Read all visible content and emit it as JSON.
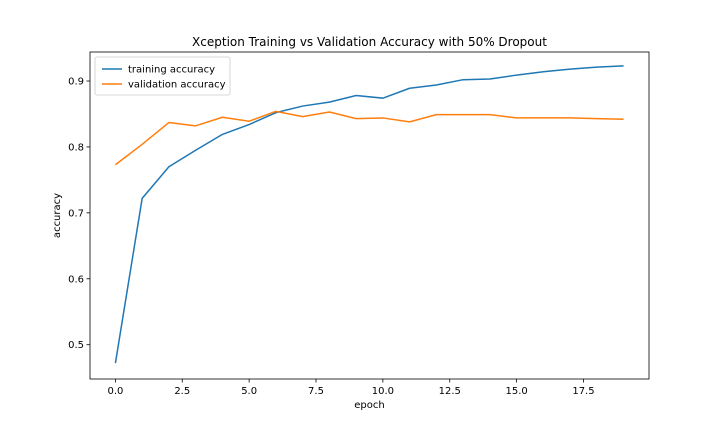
{
  "chart_data": {
    "type": "line",
    "title": "Xception Training vs Validation Accuracy with 50% Dropout",
    "xlabel": "epoch",
    "ylabel": "accuracy",
    "xlim": [
      -0.95,
      19.95
    ],
    "ylim": [
      0.448,
      0.944
    ],
    "xticks": [
      0.0,
      2.5,
      5.0,
      7.5,
      10.0,
      12.5,
      15.0,
      17.5
    ],
    "xtick_labels": [
      "0.0",
      "2.5",
      "5.0",
      "7.5",
      "10.0",
      "12.5",
      "15.0",
      "17.5"
    ],
    "yticks": [
      0.5,
      0.6,
      0.7,
      0.8,
      0.9
    ],
    "ytick_labels": [
      "0.5",
      "0.6",
      "0.7",
      "0.8",
      "0.9"
    ],
    "grid": false,
    "legend_position": "top-left",
    "x": [
      0,
      1,
      2,
      3,
      4,
      5,
      6,
      7,
      8,
      9,
      10,
      11,
      12,
      13,
      14,
      15,
      16,
      17,
      18,
      19
    ],
    "series": [
      {
        "name": "training accuracy",
        "color": "#1f77b4",
        "values": [
          0.472,
          0.722,
          0.77,
          0.795,
          0.819,
          0.834,
          0.852,
          0.862,
          0.868,
          0.878,
          0.874,
          0.889,
          0.894,
          0.902,
          0.903,
          0.909,
          0.914,
          0.918,
          0.921,
          0.923
        ]
      },
      {
        "name": "validation accuracy",
        "color": "#ff7f0e",
        "values": [
          0.773,
          0.804,
          0.837,
          0.832,
          0.845,
          0.839,
          0.854,
          0.846,
          0.853,
          0.843,
          0.844,
          0.838,
          0.849,
          0.849,
          0.849,
          0.844,
          0.844,
          0.844,
          0.843,
          0.842
        ]
      }
    ]
  }
}
